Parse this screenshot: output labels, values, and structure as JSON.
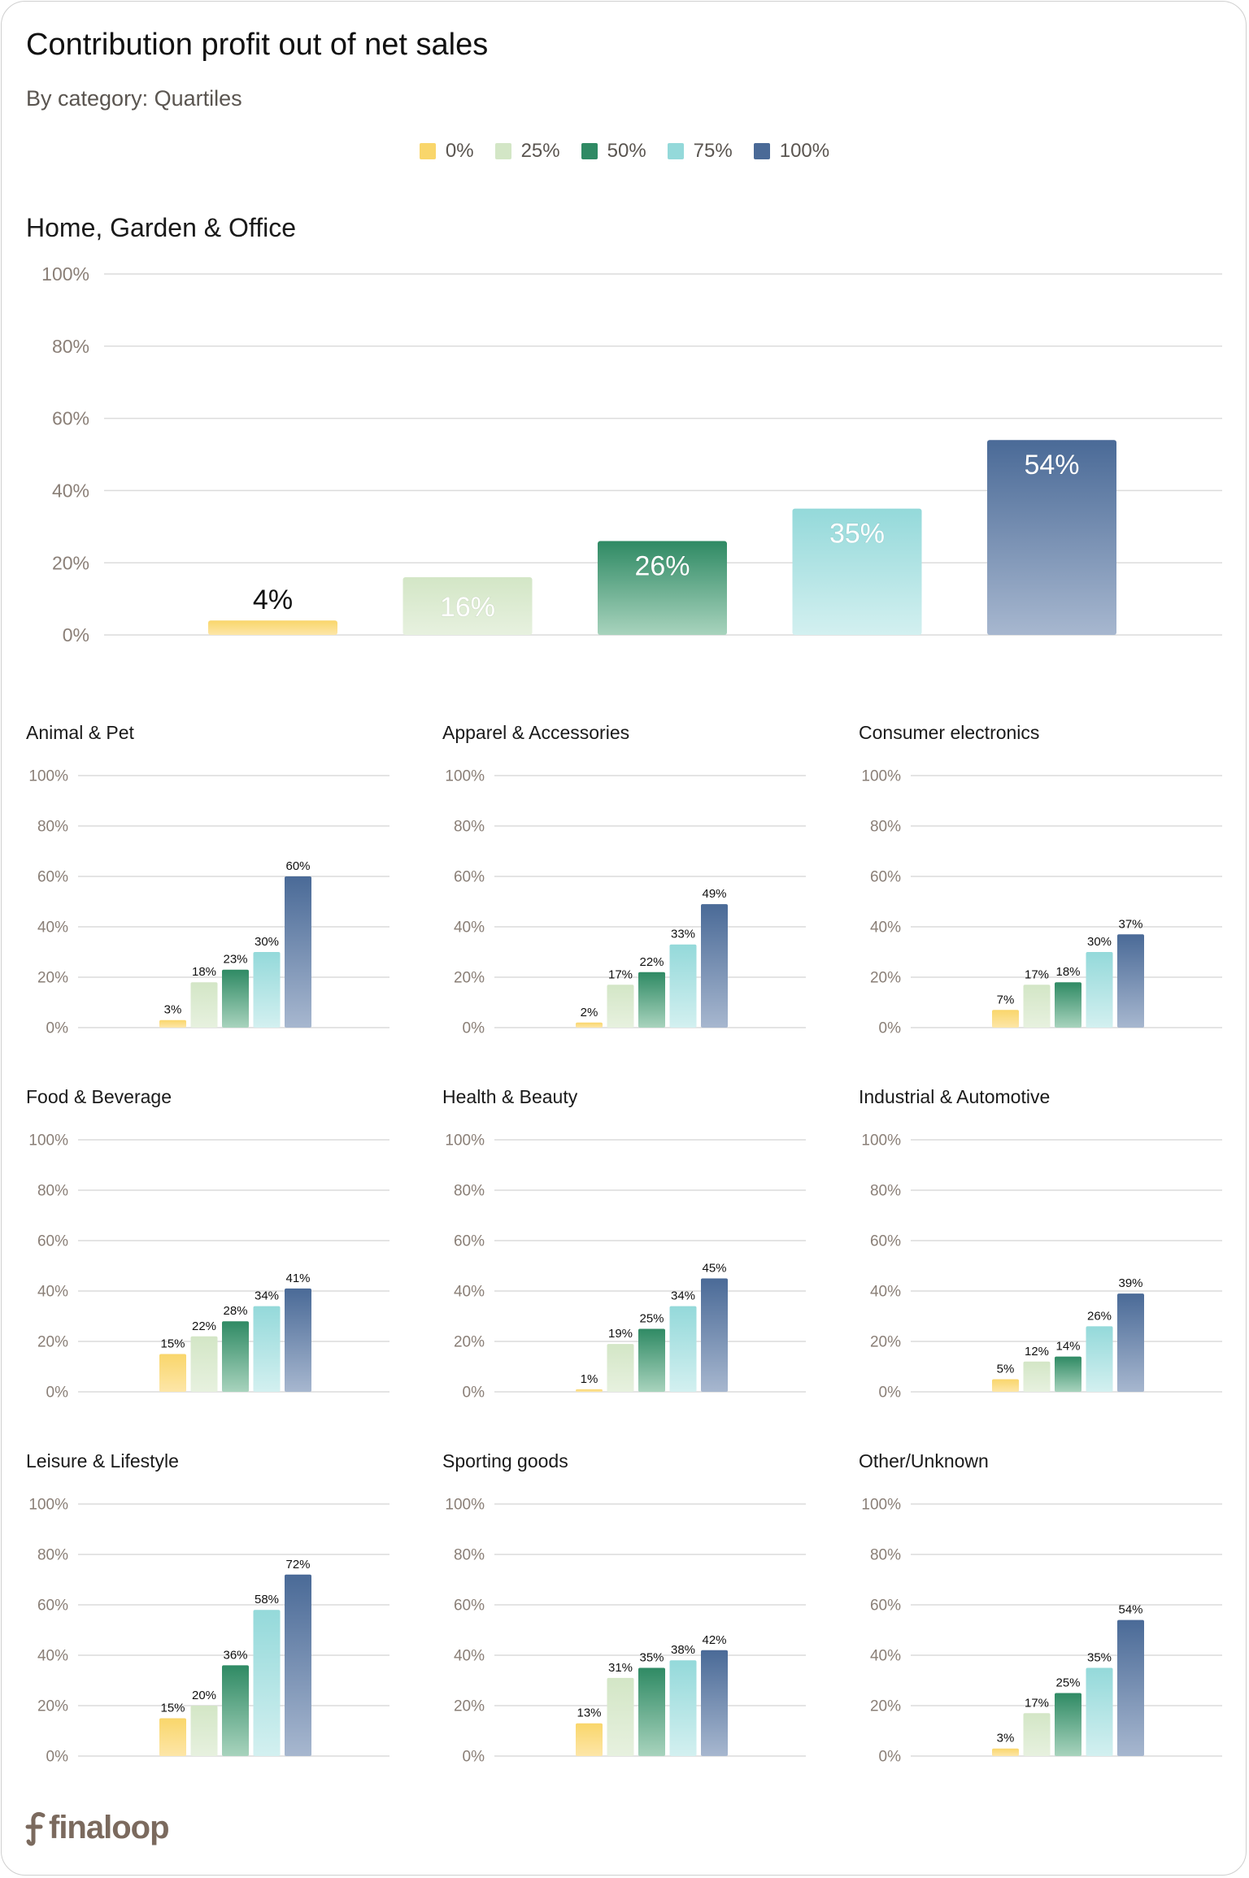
{
  "header": {
    "title": "Contribution profit out of net sales",
    "subtitle": "By category: Quartiles"
  },
  "legend": [
    {
      "label": "0%",
      "color": "#f9d66b"
    },
    {
      "label": "25%",
      "color": "#d3e6c6"
    },
    {
      "label": "50%",
      "color": "#2f8a64"
    },
    {
      "label": "75%",
      "color": "#94d9da"
    },
    {
      "label": "100%",
      "color": "#4a6a97"
    }
  ],
  "brand": {
    "name": "finaloop"
  },
  "chart_data": [
    {
      "type": "bar",
      "title": "Home, Garden & Office",
      "categories": [
        "0%",
        "25%",
        "50%",
        "75%",
        "100%"
      ],
      "values": [
        4,
        16,
        26,
        35,
        54
      ],
      "labels": [
        "4%",
        "16%",
        "26%",
        "35%",
        "54%"
      ],
      "yticks": [
        "0%",
        "20%",
        "40%",
        "60%",
        "80%",
        "100%"
      ],
      "ylim": [
        0,
        100
      ]
    },
    {
      "type": "bar",
      "title": "Animal & Pet",
      "categories": [
        "0%",
        "25%",
        "50%",
        "75%",
        "100%"
      ],
      "values": [
        3,
        18,
        23,
        30,
        60
      ],
      "labels": [
        "3%",
        "18%",
        "23%",
        "30%",
        "60%"
      ],
      "yticks": [
        "0%",
        "20%",
        "40%",
        "60%",
        "80%",
        "100%"
      ],
      "ylim": [
        0,
        100
      ]
    },
    {
      "type": "bar",
      "title": "Apparel & Accessories",
      "categories": [
        "0%",
        "25%",
        "50%",
        "75%",
        "100%"
      ],
      "values": [
        2,
        17,
        22,
        33,
        49
      ],
      "labels": [
        "2%",
        "17%",
        "22%",
        "33%",
        "49%"
      ],
      "yticks": [
        "0%",
        "20%",
        "40%",
        "60%",
        "80%",
        "100%"
      ],
      "ylim": [
        0,
        100
      ]
    },
    {
      "type": "bar",
      "title": "Consumer electronics",
      "categories": [
        "0%",
        "25%",
        "50%",
        "75%",
        "100%"
      ],
      "values": [
        7,
        17,
        18,
        30,
        37
      ],
      "labels": [
        "7%",
        "17%",
        "18%",
        "30%",
        "37%"
      ],
      "yticks": [
        "0%",
        "20%",
        "40%",
        "60%",
        "80%",
        "100%"
      ],
      "ylim": [
        0,
        100
      ]
    },
    {
      "type": "bar",
      "title": "Food & Beverage",
      "categories": [
        "0%",
        "25%",
        "50%",
        "75%",
        "100%"
      ],
      "values": [
        15,
        22,
        28,
        34,
        41
      ],
      "labels": [
        "15%",
        "22%",
        "28%",
        "34%",
        "41%"
      ],
      "yticks": [
        "0%",
        "20%",
        "40%",
        "60%",
        "80%",
        "100%"
      ],
      "ylim": [
        0,
        100
      ]
    },
    {
      "type": "bar",
      "title": "Health & Beauty",
      "categories": [
        "0%",
        "25%",
        "50%",
        "75%",
        "100%"
      ],
      "values": [
        1,
        19,
        25,
        34,
        45
      ],
      "labels": [
        "1%",
        "19%",
        "25%",
        "34%",
        "45%"
      ],
      "yticks": [
        "0%",
        "20%",
        "40%",
        "60%",
        "80%",
        "100%"
      ],
      "ylim": [
        0,
        100
      ]
    },
    {
      "type": "bar",
      "title": "Industrial & Automotive",
      "categories": [
        "0%",
        "25%",
        "50%",
        "75%",
        "100%"
      ],
      "values": [
        5,
        12,
        14,
        26,
        39
      ],
      "labels": [
        "5%",
        "12%",
        "14%",
        "26%",
        "39%"
      ],
      "yticks": [
        "0%",
        "20%",
        "40%",
        "60%",
        "80%",
        "100%"
      ],
      "ylim": [
        0,
        100
      ]
    },
    {
      "type": "bar",
      "title": "Leisure & Lifestyle",
      "categories": [
        "0%",
        "25%",
        "50%",
        "75%",
        "100%"
      ],
      "values": [
        15,
        20,
        36,
        58,
        72
      ],
      "labels": [
        "15%",
        "20%",
        "36%",
        "58%",
        "72%"
      ],
      "yticks": [
        "0%",
        "20%",
        "40%",
        "60%",
        "80%",
        "100%"
      ],
      "ylim": [
        0,
        100
      ]
    },
    {
      "type": "bar",
      "title": "Sporting goods",
      "categories": [
        "0%",
        "25%",
        "50%",
        "75%",
        "100%"
      ],
      "values": [
        13,
        31,
        35,
        38,
        42
      ],
      "labels": [
        "13%",
        "31%",
        "35%",
        "38%",
        "42%"
      ],
      "yticks": [
        "0%",
        "20%",
        "40%",
        "60%",
        "80%",
        "100%"
      ],
      "ylim": [
        0,
        100
      ]
    },
    {
      "type": "bar",
      "title": "Other/Unknown",
      "categories": [
        "0%",
        "25%",
        "50%",
        "75%",
        "100%"
      ],
      "values": [
        3,
        17,
        25,
        35,
        54
      ],
      "labels": [
        "3%",
        "17%",
        "25%",
        "35%",
        "54%"
      ],
      "yticks": [
        "0%",
        "20%",
        "40%",
        "60%",
        "80%",
        "100%"
      ],
      "ylim": [
        0,
        100
      ]
    }
  ]
}
